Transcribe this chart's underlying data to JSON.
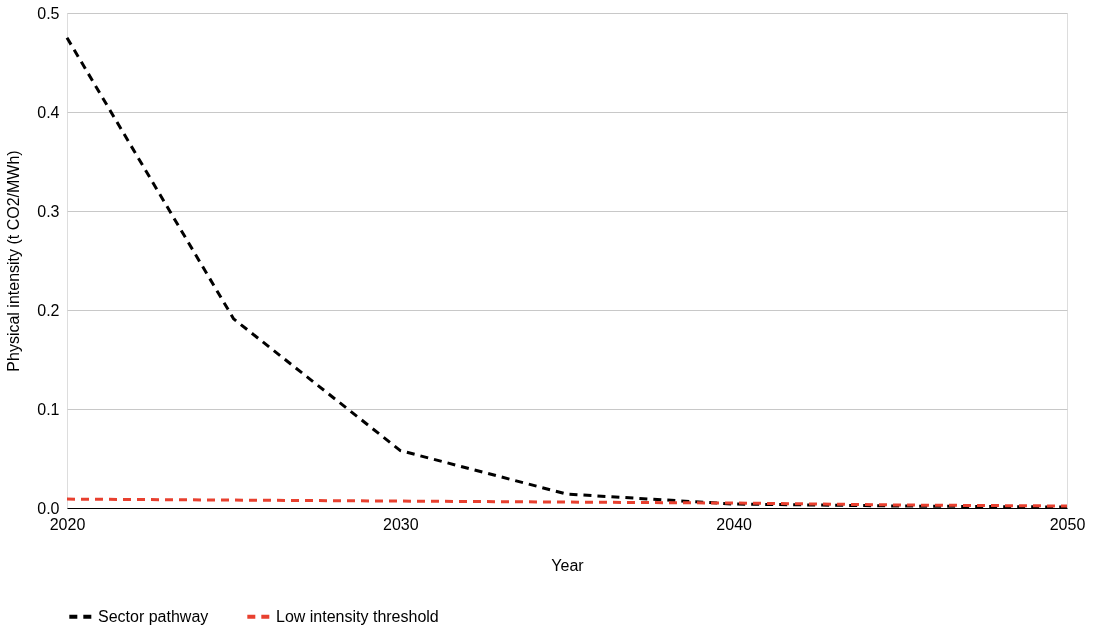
{
  "chart_data": {
    "type": "line",
    "xlabel": "Year",
    "ylabel": "Physical intensity (t CO2/MWh)",
    "x": [
      2020,
      2025,
      2030,
      2035,
      2040,
      2045,
      2050
    ],
    "series": [
      {
        "name": "Sector pathway",
        "color": "#000000",
        "values": [
          0.475,
          0.191,
          0.058,
          0.014,
          0.004,
          0.002,
          0.001
        ]
      },
      {
        "name": "Low intensity threshold",
        "color": "#e8402f",
        "values": [
          0.009,
          0.008,
          0.007,
          0.006,
          0.005,
          0.003,
          0.002
        ]
      }
    ],
    "xlim": [
      2020,
      2050
    ],
    "xticks": [
      2020,
      2030,
      2040,
      2050
    ],
    "ylim": [
      0,
      0.5
    ],
    "yticks": [
      {
        "value": 0,
        "label": "0.0"
      },
      0.1,
      0.2,
      0.3,
      0.4,
      0.5
    ],
    "grid": "y",
    "legend": "bottom",
    "line_style": "dashed",
    "marker": "none"
  }
}
